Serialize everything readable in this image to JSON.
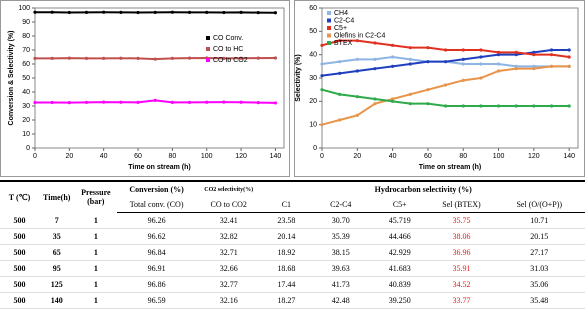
{
  "chart_data": [
    {
      "type": "line",
      "x_label": "Time on stream (h)",
      "y_label": "Conversion & Selectivity (%)",
      "x": [
        0,
        10,
        20,
        30,
        40,
        50,
        60,
        70,
        80,
        90,
        100,
        110,
        120,
        130,
        140
      ],
      "series": [
        {
          "name": "CO Conv.",
          "color": "#000000",
          "values": [
            97,
            97,
            96.8,
            96.9,
            97,
            96.9,
            96.8,
            96.9,
            97,
            96.9,
            96.9,
            96.8,
            96.9,
            96.7,
            96.6
          ]
        },
        {
          "name": "CO to HC",
          "color": "#c0504d",
          "values": [
            64,
            64,
            64.2,
            64,
            64,
            64.1,
            64,
            63.5,
            64,
            64.2,
            64.3,
            64,
            64.1,
            64.2,
            64.3
          ]
        },
        {
          "name": "CO to CO2",
          "color": "#ff00ff",
          "values": [
            32.5,
            32.5,
            32.4,
            32.6,
            32.8,
            32.7,
            32.6,
            34,
            32.6,
            32.6,
            32.7,
            32.8,
            32.7,
            32.4,
            32.2
          ]
        }
      ],
      "xlim": [
        0,
        145
      ],
      "ylim": [
        0,
        100
      ],
      "xticks": [
        0,
        20,
        40,
        60,
        80,
        100,
        120,
        140
      ],
      "yticks": [
        0,
        10,
        20,
        30,
        40,
        50,
        60,
        70,
        80,
        90,
        100
      ],
      "legend": "center right"
    },
    {
      "type": "line",
      "x_label": "Time on stream (h)",
      "y_label": "Selectivity (%)",
      "x": [
        0,
        10,
        20,
        30,
        40,
        50,
        60,
        70,
        80,
        90,
        100,
        110,
        120,
        130,
        140
      ],
      "series": [
        {
          "name": "CH4",
          "color": "#8db4e2",
          "values": [
            36,
            37,
            38,
            38,
            39,
            38,
            37,
            37,
            36,
            36,
            36,
            35,
            35,
            35,
            35
          ]
        },
        {
          "name": "C2-C4",
          "color": "#1f3fbf",
          "values": [
            31,
            32,
            33,
            34,
            35,
            36,
            37,
            37,
            38,
            39,
            40,
            40,
            41,
            42,
            42
          ]
        },
        {
          "name": "C5+",
          "color": "#e03020",
          "values": [
            44,
            46,
            46,
            45,
            44,
            43,
            43,
            42,
            42,
            42,
            41,
            41,
            40,
            40,
            39
          ]
        },
        {
          "name": "Olefins in C2-C4",
          "color": "#e8944a",
          "values": [
            10,
            12,
            14,
            19,
            21,
            23,
            25,
            27,
            29,
            30,
            33,
            34,
            34,
            35,
            35
          ]
        },
        {
          "name": "BTEX",
          "color": "#2eaa4a",
          "values": [
            25,
            23,
            22,
            21,
            20,
            19,
            19,
            18,
            18,
            18,
            18,
            18,
            18,
            18,
            18
          ]
        }
      ],
      "xlim": [
        0,
        145
      ],
      "ylim": [
        0,
        60
      ],
      "xticks": [
        0,
        20,
        40,
        60,
        80,
        100,
        120,
        140
      ],
      "yticks": [
        0,
        10,
        20,
        30,
        40,
        50,
        60
      ],
      "legend": "upper left"
    }
  ],
  "table": {
    "header_top": [
      "T (℃)",
      "Time(h)",
      "Pressure (bar)",
      "Conversion (%)",
      "CO2 selectivity(%)",
      "Hydrocarbon selectivity (%)"
    ],
    "header_sub": [
      "Total conv. (CO)",
      "CO to CO2",
      "C1",
      "C2-C4",
      "C5+",
      "Sel (BTEX)",
      "Sel (O/(O+P))"
    ],
    "rows": [
      [
        "500",
        "7",
        "1",
        "96.26",
        "32.41",
        "23.58",
        "30.70",
        "45.719",
        "35.75",
        "10.71"
      ],
      [
        "500",
        "35",
        "1",
        "96.62",
        "32.82",
        "20.14",
        "35.39",
        "44.466",
        "38.06",
        "20.15"
      ],
      [
        "500",
        "65",
        "1",
        "96.84",
        "32.71",
        "18.92",
        "38.15",
        "42.929",
        "36.96",
        "27.17"
      ],
      [
        "500",
        "95",
        "1",
        "96.91",
        "32.66",
        "18.68",
        "39.63",
        "41.683",
        "35.91",
        "31.03"
      ],
      [
        "500",
        "125",
        "1",
        "96.86",
        "32.77",
        "17.44",
        "41.73",
        "40.839",
        "34.52",
        "35.06"
      ],
      [
        "500",
        "140",
        "1",
        "96.59",
        "32.16",
        "18.27",
        "42.48",
        "39.250",
        "33.77",
        "35.48"
      ]
    ]
  }
}
